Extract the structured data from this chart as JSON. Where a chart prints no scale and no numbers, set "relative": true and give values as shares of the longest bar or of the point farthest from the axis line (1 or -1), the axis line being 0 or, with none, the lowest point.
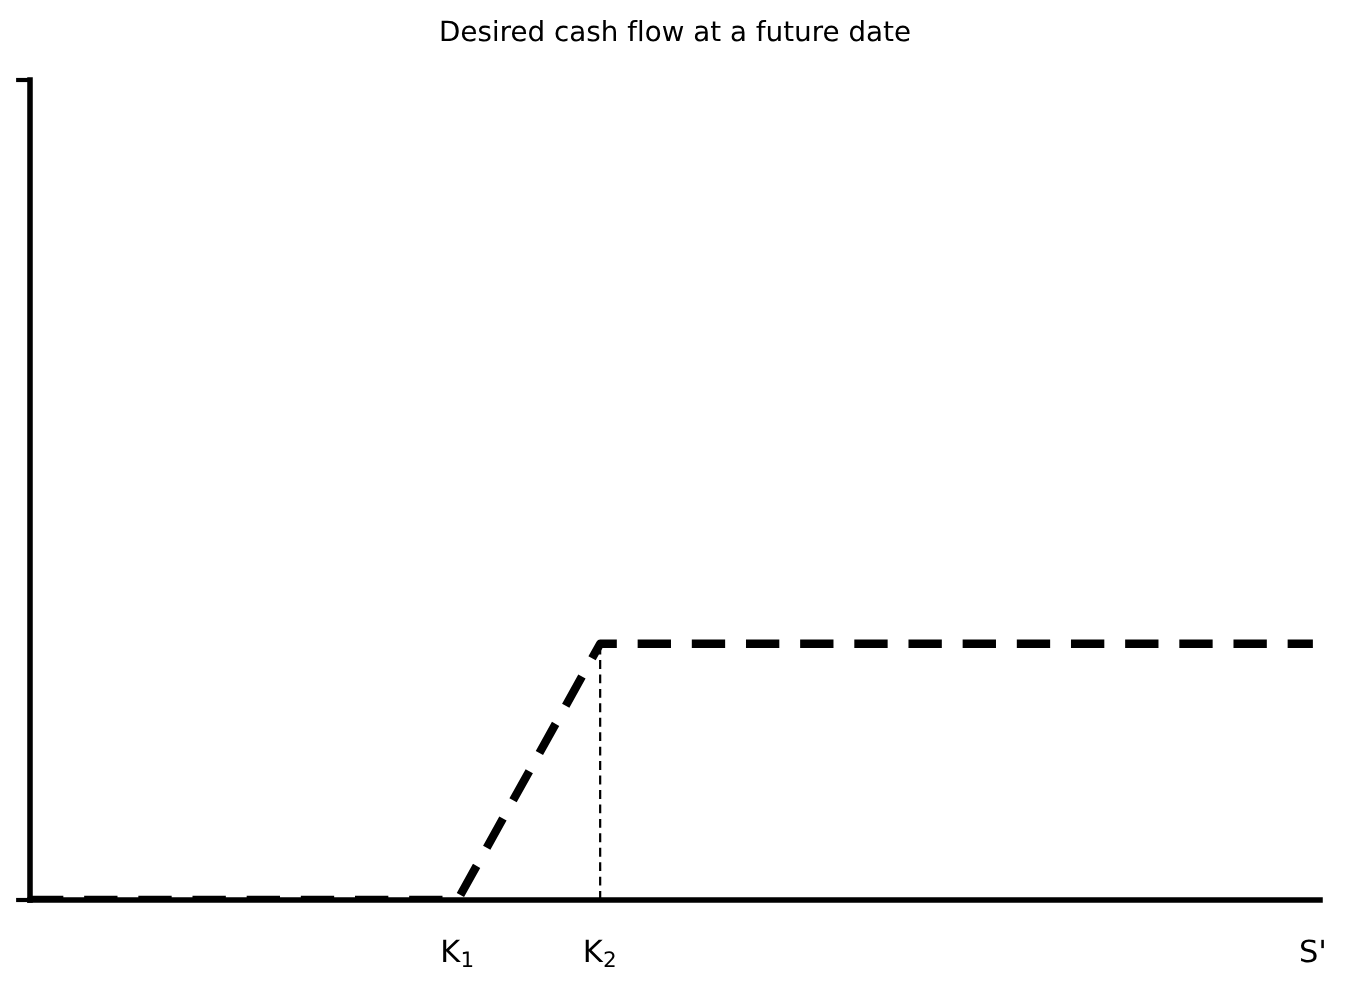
{
  "chart_data": {
    "type": "line",
    "title": "Desired cash flow at a future date",
    "relative": true,
    "categories": [
      null,
      null,
      null,
      "K$_{1}$",
      "K$_{2}$",
      null,
      null,
      null,
      null,
      "S'"
    ],
    "series": [
      {
        "color": "#000000",
        "values": [
          0,
          0,
          0,
          0,
          1,
          1,
          1,
          1,
          1,
          1
        ],
        "line_style": "dashed"
      }
    ],
    "ref_lines": [
      {
        "axis": "x",
        "value": "K$_{2}$",
        "color": "#000000",
        "line_style": "dashed"
      }
    ],
    "marker": "none",
    "grid": false,
    "legend": false
  }
}
